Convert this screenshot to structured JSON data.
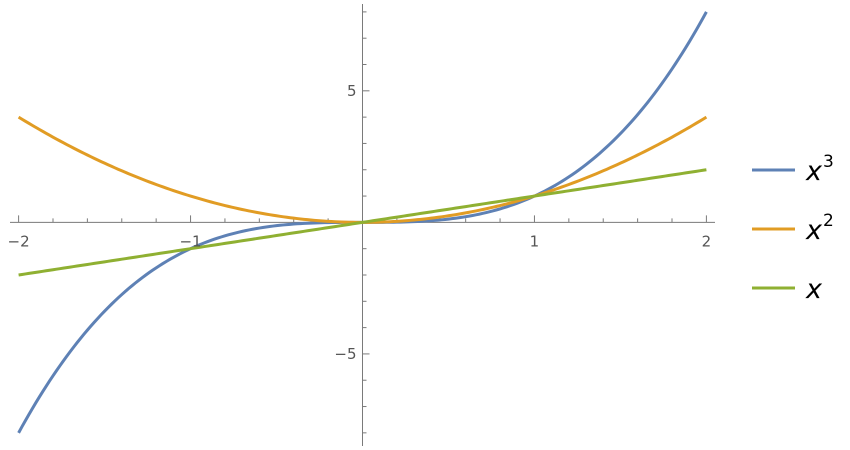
{
  "chart_data": {
    "type": "line",
    "title": "",
    "xlabel": "",
    "ylabel": "",
    "xlim": [
      -2.05,
      2.05
    ],
    "ylim": [
      -8.5,
      8.3
    ],
    "grid": false,
    "legend_position": "right",
    "x_ticks_major": [
      -2,
      -1,
      1,
      2
    ],
    "x_tick_labels": [
      "−2",
      "−1",
      "1",
      "2"
    ],
    "y_ticks_major": [
      -5,
      5
    ],
    "y_tick_labels": [
      "−5",
      "5"
    ],
    "x_minor_step": 0.2,
    "y_minor_step": 1,
    "series": [
      {
        "name": "x3",
        "label_base": "x",
        "label_sup": "3",
        "function": "x^3",
        "color": "#5e81b5",
        "x": [
          -2,
          -1.5,
          -1,
          -0.5,
          0,
          0.5,
          1,
          1.5,
          2
        ],
        "y": [
          -8,
          -3.375,
          -1,
          -0.125,
          0,
          0.125,
          1,
          3.375,
          8
        ]
      },
      {
        "name": "x2",
        "label_base": "x",
        "label_sup": "2",
        "function": "x^2",
        "color": "#e19c24",
        "x": [
          -2,
          -1.5,
          -1,
          -0.5,
          0,
          0.5,
          1,
          1.5,
          2
        ],
        "y": [
          4,
          2.25,
          1,
          0.25,
          0,
          0.25,
          1,
          2.25,
          4
        ]
      },
      {
        "name": "x",
        "label_base": "x",
        "label_sup": "",
        "function": "x",
        "color": "#8fb032",
        "x": [
          -2,
          -1.5,
          -1,
          -0.5,
          0,
          0.5,
          1,
          1.5,
          2
        ],
        "y": [
          -2,
          -1.5,
          -1,
          -0.5,
          0,
          0.5,
          1,
          1.5,
          2
        ]
      }
    ]
  }
}
